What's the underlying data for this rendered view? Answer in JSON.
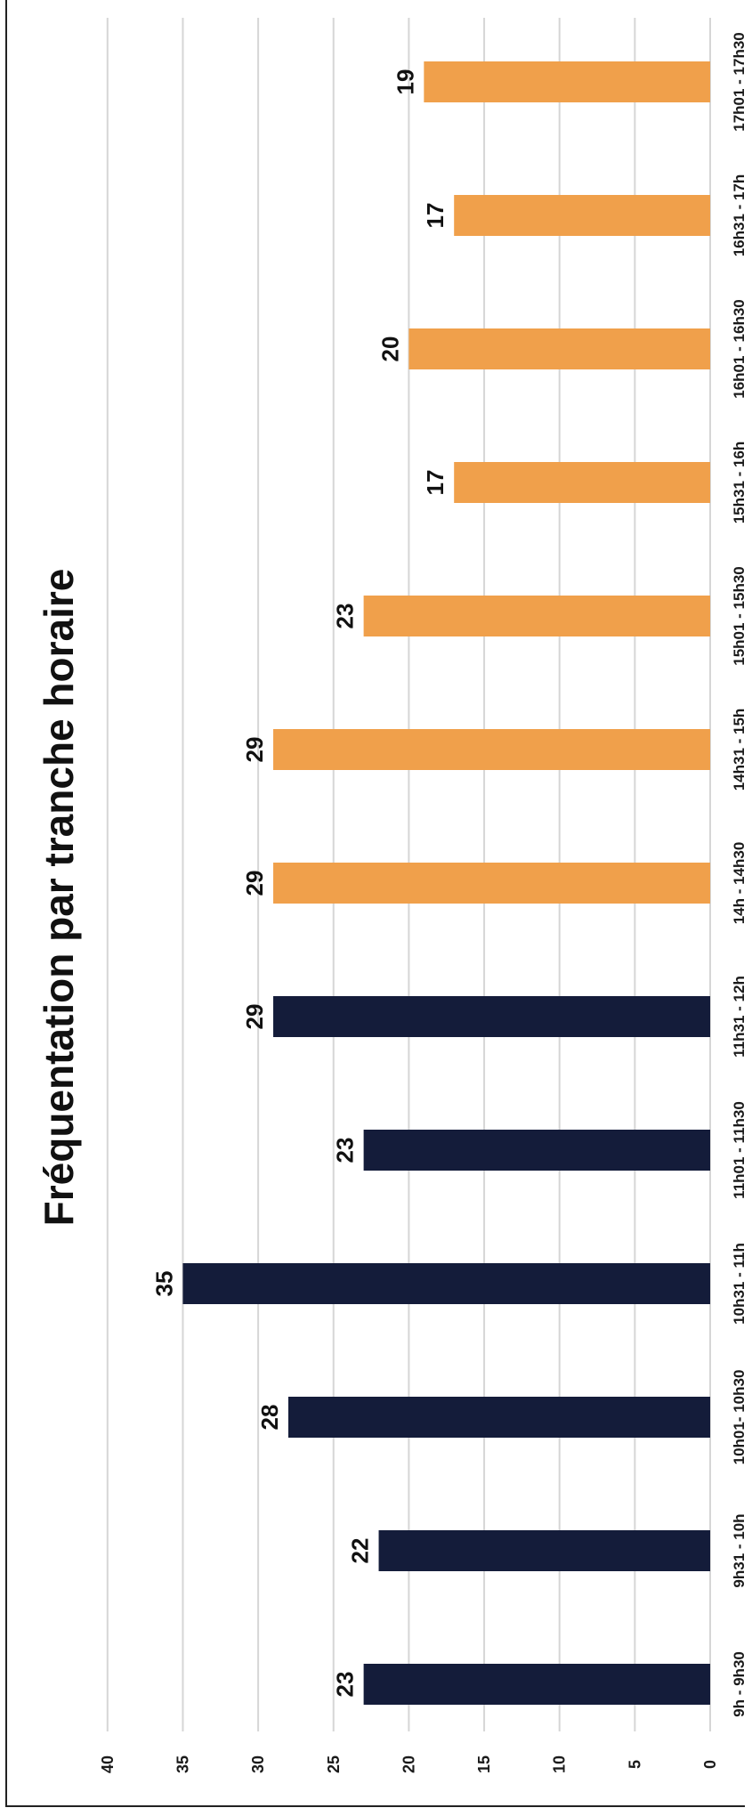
{
  "chart_data": {
    "type": "bar",
    "orientation": "rotated-90-clockwise",
    "title": "Fréquentation par tranche horaire",
    "xlabel": "",
    "ylabel": "",
    "ylim": [
      0,
      40
    ],
    "yticks": [
      0,
      5,
      10,
      15,
      20,
      25,
      30,
      35,
      40
    ],
    "grid": true,
    "categories": [
      "9h - 9h30",
      "9h31 - 10h",
      "10h01- 10h30",
      "10h31 - 11h",
      "11h01 - 11h30",
      "11h31 - 12h",
      "14h - 14h30",
      "14h31 - 15h",
      "15h01 - 15h30",
      "15h31 - 16h",
      "16h01 - 16h30",
      "16h31 - 17h",
      "17h01 - 17h30"
    ],
    "values": [
      23,
      22,
      28,
      35,
      23,
      29,
      29,
      29,
      23,
      17,
      20,
      17,
      19
    ],
    "bar_colors": [
      "#141c3a",
      "#141c3a",
      "#141c3a",
      "#141c3a",
      "#141c3a",
      "#141c3a",
      "#f0a04b",
      "#f0a04b",
      "#f0a04b",
      "#f0a04b",
      "#f0a04b",
      "#f0a04b",
      "#f0a04b"
    ],
    "data_labels": [
      "23",
      "22",
      "28",
      "35",
      "23",
      "29",
      "29",
      "29",
      "23",
      "17",
      "20",
      "17",
      "19"
    ]
  },
  "colors": {
    "morning": "#141c3a",
    "afternoon": "#f0a04b",
    "grid": "#d6d6d6",
    "background": "#ffffff"
  }
}
